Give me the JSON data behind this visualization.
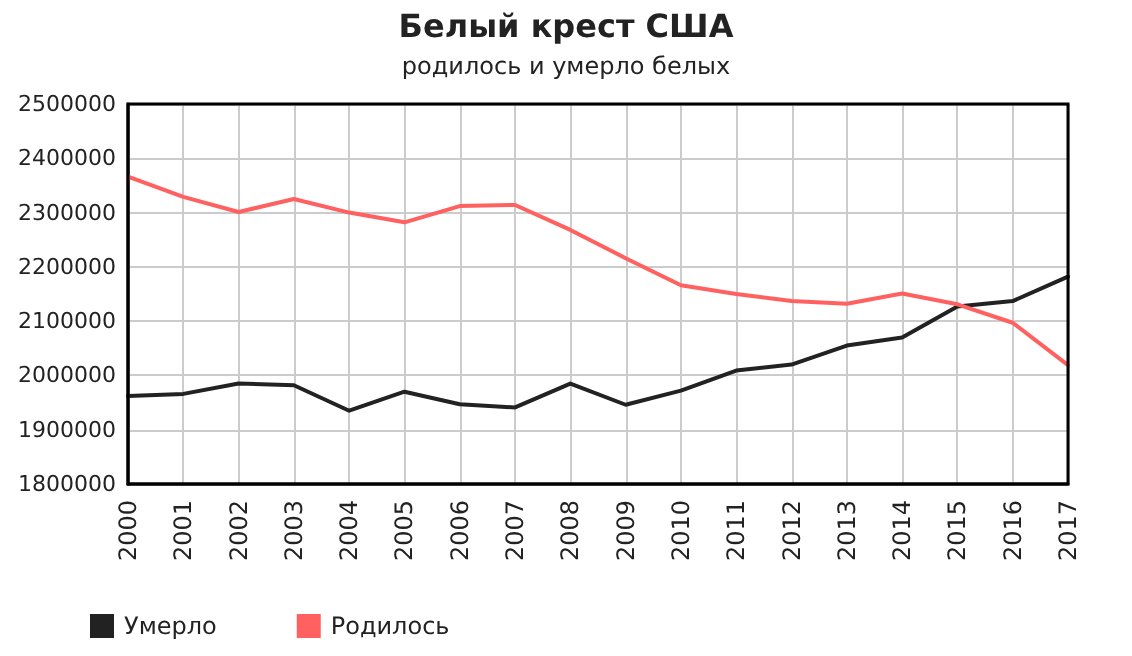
{
  "chart_data": {
    "type": "line",
    "title": "Белый крест США",
    "subtitle": "родилось и умерло белых",
    "categories": [
      "2000",
      "2001",
      "2002",
      "2003",
      "2004",
      "2005",
      "2006",
      "2007",
      "2008",
      "2009",
      "2010",
      "2011",
      "2012",
      "2013",
      "2014",
      "2015",
      "2016",
      "2017"
    ],
    "series": [
      {
        "name": "Умерло",
        "color": "#222222",
        "values": [
          1962000,
          1966000,
          1985000,
          1982000,
          1935000,
          1970000,
          1947000,
          1941000,
          1985000,
          1946000,
          1972000,
          2009000,
          2020000,
          2055000,
          2070000,
          2127000,
          2137000,
          2182000
        ]
      },
      {
        "name": "Родилось",
        "color": "#ff6060",
        "values": [
          2366000,
          2329000,
          2301000,
          2325000,
          2300000,
          2282000,
          2312000,
          2314000,
          2268000,
          2216000,
          2166000,
          2150000,
          2137000,
          2132000,
          2151000,
          2131000,
          2097000,
          2019000
        ]
      }
    ],
    "ylim": [
      1800000,
      2500000
    ],
    "yticks": [
      1800000,
      1900000,
      2000000,
      2100000,
      2200000,
      2300000,
      2400000,
      2500000
    ],
    "grid": true,
    "legend": "bottom left",
    "marker": "none",
    "line_style": "solid"
  }
}
